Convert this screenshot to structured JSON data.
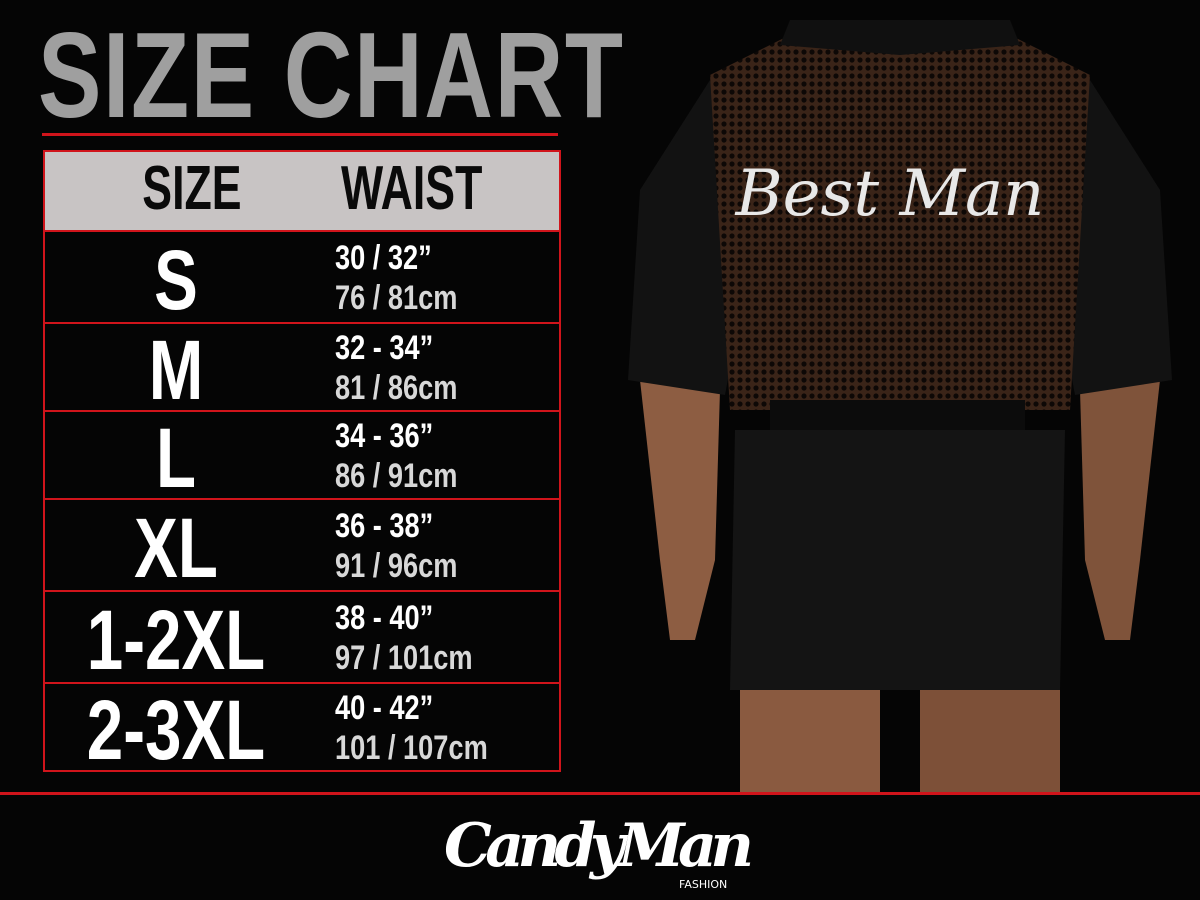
{
  "title": "SIZE CHART",
  "table": {
    "headers": [
      "SIZE",
      "WAIST"
    ],
    "rows": [
      {
        "size": "S",
        "inches": "30 / 32”",
        "cm": "76 / 81cm"
      },
      {
        "size": "M",
        "inches": "32 - 34”",
        "cm": "81 / 86cm"
      },
      {
        "size": "L",
        "inches": "34 - 36”",
        "cm": "86 / 91cm"
      },
      {
        "size": "XL",
        "inches": "36 - 38”",
        "cm": "91 / 96cm"
      },
      {
        "size": "1-2XL",
        "inches": "38 - 40”",
        "cm": "97 / 101cm"
      },
      {
        "size": "2-3XL",
        "inches": "40 - 42”",
        "cm": "101 / 107cm"
      }
    ]
  },
  "product_print": "Best Man",
  "brand": {
    "name": "CandyMan",
    "sub": "FASHION"
  },
  "colors": {
    "accent": "#d0141b",
    "header_bg": "#c8c4c4",
    "title": "#9f9f9f",
    "background": "#050505"
  }
}
